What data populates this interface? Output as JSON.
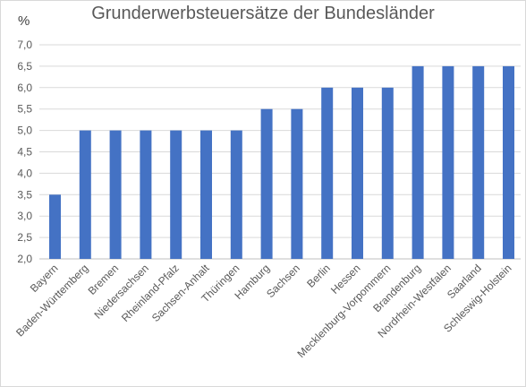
{
  "chart_data": {
    "type": "bar",
    "title": "Grunderwerbsteuersätze der Bundesländer",
    "ylabel": "%",
    "xlabel": "",
    "ylim": [
      2.0,
      7.0
    ],
    "yticks": [
      "2,0",
      "2,5",
      "3,0",
      "3,5",
      "4,0",
      "4,5",
      "5,0",
      "5,5",
      "6,0",
      "6,5",
      "7,0"
    ],
    "grid": true,
    "legend": "none",
    "bar_color": "#4472c4",
    "categories": [
      "Bayern",
      "Baden-Württemberg",
      "Bremen",
      "Niedersachsen",
      "Rheinland-Pfalz",
      "Sachsen-Anhalt",
      "Thüringen",
      "Hamburg",
      "Sachsen",
      "Berlin",
      "Hessen",
      "Mecklenburg-Vorpommern",
      "Brandenburg",
      "Nordrhein-Westfalen",
      "Saarland",
      "Schleswig-Holstein"
    ],
    "values": [
      3.5,
      5.0,
      5.0,
      5.0,
      5.0,
      5.0,
      5.0,
      5.5,
      5.5,
      6.0,
      6.0,
      6.0,
      6.5,
      6.5,
      6.5,
      6.5
    ]
  }
}
